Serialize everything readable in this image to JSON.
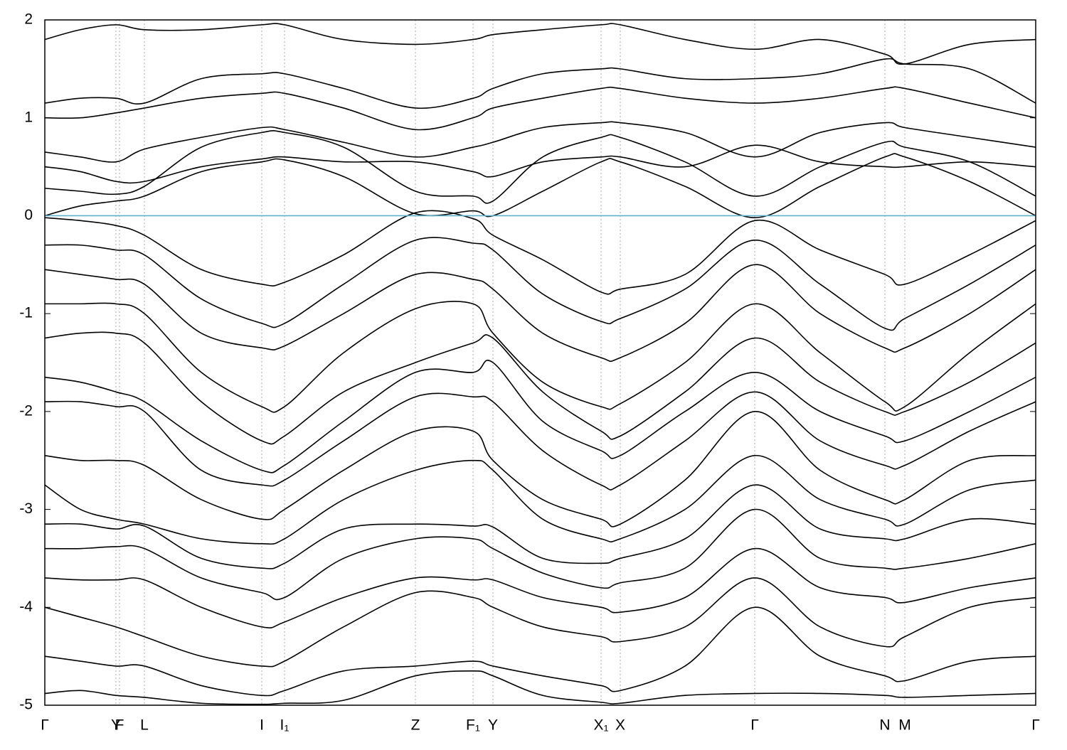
{
  "chart_data": {
    "type": "line",
    "xlim": [
      0,
      1393
    ],
    "ylim": [
      -5,
      2
    ],
    "yticks": [
      -5,
      -4,
      -3,
      -2,
      -1,
      0,
      1,
      2
    ],
    "xticks": [
      {
        "value": 0,
        "label": "Γ"
      },
      {
        "value": 100,
        "label": "Y"
      },
      {
        "value": 105,
        "label": "F"
      },
      {
        "value": 140,
        "label": "L"
      },
      {
        "value": 305,
        "label": "I"
      },
      {
        "value": 337,
        "label": "I₁"
      },
      {
        "value": 521,
        "label": "Z"
      },
      {
        "value": 602,
        "label": "F₁"
      },
      {
        "value": 630,
        "label": "Y"
      },
      {
        "value": 782,
        "label": "X₁"
      },
      {
        "value": 809,
        "label": "X"
      },
      {
        "value": 998,
        "label": "Γ"
      },
      {
        "value": 1181,
        "label": "N"
      },
      {
        "value": 1209,
        "label": "M"
      },
      {
        "value": 1393,
        "label": "Γ"
      }
    ],
    "grid": true,
    "fermi_level": 0,
    "fermi_color": "#5fb3c9",
    "line_color": "#000000",
    "x": [
      0,
      50,
      100,
      140,
      220,
      305,
      337,
      420,
      521,
      602,
      630,
      700,
      782,
      809,
      900,
      998,
      1090,
      1181,
      1209,
      1300,
      1393
    ],
    "series": [
      {
        "values": [
          1.8,
          1.9,
          1.95,
          1.9,
          1.9,
          1.95,
          1.95,
          1.8,
          1.75,
          1.8,
          1.85,
          1.9,
          1.95,
          1.95,
          1.8,
          1.7,
          1.8,
          1.65,
          1.55,
          1.75,
          1.8
        ]
      },
      {
        "values": [
          1.15,
          1.2,
          1.2,
          1.15,
          1.4,
          1.45,
          1.45,
          1.3,
          1.1,
          1.2,
          1.3,
          1.45,
          1.5,
          1.5,
          1.4,
          1.4,
          1.45,
          1.6,
          1.55,
          1.5,
          1.15
        ]
      },
      {
        "values": [
          1.0,
          1.0,
          1.05,
          1.1,
          1.2,
          1.25,
          1.25,
          1.1,
          0.88,
          1.0,
          1.1,
          1.2,
          1.3,
          1.3,
          1.2,
          1.15,
          1.2,
          1.3,
          1.3,
          1.15,
          1.0
        ]
      },
      {
        "values": [
          0.65,
          0.6,
          0.55,
          0.68,
          0.8,
          0.9,
          0.88,
          0.75,
          0.6,
          0.7,
          0.75,
          0.9,
          0.95,
          0.95,
          0.85,
          0.6,
          0.85,
          0.95,
          0.9,
          0.8,
          0.7
        ]
      },
      {
        "values": [
          0.5,
          0.45,
          0.35,
          0.35,
          0.5,
          0.58,
          0.6,
          0.55,
          0.55,
          0.45,
          0.4,
          0.55,
          0.6,
          0.6,
          0.5,
          0.72,
          0.55,
          0.5,
          0.5,
          0.55,
          0.5
        ]
      },
      {
        "values": [
          0.28,
          0.25,
          0.22,
          0.3,
          0.7,
          0.85,
          0.85,
          0.7,
          0.25,
          0.2,
          0.15,
          0.6,
          0.8,
          0.8,
          0.55,
          0.2,
          0.5,
          0.75,
          0.7,
          0.55,
          0.2
        ]
      },
      {
        "values": [
          0.0,
          0.1,
          0.15,
          0.2,
          0.45,
          0.55,
          0.57,
          0.4,
          0.02,
          0.05,
          0.0,
          0.25,
          0.55,
          0.55,
          0.3,
          -0.02,
          0.3,
          0.6,
          0.6,
          0.35,
          0.0
        ]
      },
      {
        "values": [
          -0.02,
          -0.05,
          -0.1,
          -0.2,
          -0.55,
          -0.7,
          -0.68,
          -0.4,
          0.03,
          -0.03,
          -0.2,
          -0.45,
          -0.78,
          -0.75,
          -0.6,
          -0.05,
          -0.35,
          -0.6,
          -0.7,
          -0.4,
          -0.05
        ]
      },
      {
        "values": [
          -0.3,
          -0.3,
          -0.35,
          -0.4,
          -0.85,
          -1.1,
          -1.1,
          -0.7,
          -0.25,
          -0.28,
          -0.35,
          -0.8,
          -1.08,
          -1.05,
          -0.75,
          -0.25,
          -0.7,
          -1.15,
          -1.05,
          -0.7,
          -0.3
        ]
      },
      {
        "values": [
          -0.55,
          -0.6,
          -0.65,
          -0.7,
          -1.2,
          -1.35,
          -1.33,
          -1.0,
          -0.6,
          -0.65,
          -0.75,
          -1.2,
          -1.45,
          -1.45,
          -1.1,
          -0.5,
          -1.0,
          -1.35,
          -1.35,
          -1.0,
          -0.55
        ]
      },
      {
        "values": [
          -0.9,
          -0.9,
          -0.9,
          -1.0,
          -1.6,
          -1.95,
          -1.95,
          -1.4,
          -0.95,
          -0.9,
          -1.2,
          -1.7,
          -1.95,
          -1.92,
          -1.5,
          -0.9,
          -1.4,
          -1.9,
          -1.95,
          -1.4,
          -0.9
        ]
      },
      {
        "values": [
          -1.25,
          -1.2,
          -1.2,
          -1.3,
          -1.9,
          -2.3,
          -2.25,
          -1.8,
          -1.5,
          -1.3,
          -1.25,
          -1.8,
          -2.2,
          -2.25,
          -1.8,
          -1.25,
          -1.7,
          -2.0,
          -2.0,
          -1.7,
          -1.3
        ]
      },
      {
        "values": [
          -1.65,
          -1.7,
          -1.8,
          -1.9,
          -2.3,
          -2.6,
          -2.55,
          -2.1,
          -1.6,
          -1.6,
          -1.5,
          -2.1,
          -2.4,
          -2.45,
          -2.0,
          -1.6,
          -2.0,
          -2.25,
          -2.3,
          -2.0,
          -1.65
        ]
      },
      {
        "values": [
          -1.9,
          -1.9,
          -1.95,
          -2.0,
          -2.6,
          -2.75,
          -2.7,
          -2.3,
          -1.85,
          -1.85,
          -1.9,
          -2.4,
          -2.75,
          -2.75,
          -2.3,
          -1.8,
          -2.3,
          -2.55,
          -2.55,
          -2.2,
          -1.9
        ]
      },
      {
        "values": [
          -2.45,
          -2.5,
          -2.5,
          -2.55,
          -2.9,
          -3.1,
          -3.0,
          -2.6,
          -2.2,
          -2.2,
          -2.5,
          -2.9,
          -3.1,
          -3.15,
          -2.7,
          -2.0,
          -2.6,
          -2.9,
          -2.9,
          -2.5,
          -2.45
        ]
      },
      {
        "values": [
          -2.75,
          -3.0,
          -3.1,
          -3.15,
          -3.3,
          -3.35,
          -3.3,
          -2.9,
          -2.6,
          -2.5,
          -2.6,
          -3.1,
          -3.3,
          -3.3,
          -3.0,
          -2.45,
          -2.9,
          -3.1,
          -3.15,
          -2.8,
          -2.7
        ]
      },
      {
        "values": [
          -3.15,
          -3.15,
          -3.2,
          -3.17,
          -3.5,
          -3.6,
          -3.55,
          -3.2,
          -3.15,
          -3.17,
          -3.18,
          -3.5,
          -3.55,
          -3.5,
          -3.3,
          -2.75,
          -3.2,
          -3.3,
          -3.3,
          -3.1,
          -3.15
        ]
      },
      {
        "values": [
          -3.4,
          -3.4,
          -3.38,
          -3.4,
          -3.7,
          -3.85,
          -3.9,
          -3.5,
          -3.3,
          -3.3,
          -3.4,
          -3.65,
          -3.8,
          -3.75,
          -3.6,
          -3.0,
          -3.5,
          -3.6,
          -3.6,
          -3.5,
          -3.35
        ]
      },
      {
        "values": [
          -3.7,
          -3.72,
          -3.72,
          -3.72,
          -4.0,
          -4.2,
          -4.15,
          -3.9,
          -3.7,
          -3.72,
          -3.72,
          -3.9,
          -4.0,
          -4.05,
          -3.9,
          -3.4,
          -3.8,
          -3.9,
          -3.95,
          -3.8,
          -3.7
        ]
      },
      {
        "values": [
          -4.0,
          -4.1,
          -4.2,
          -4.3,
          -4.5,
          -4.6,
          -4.55,
          -4.2,
          -3.85,
          -3.9,
          -4.0,
          -4.2,
          -4.3,
          -4.35,
          -4.2,
          -3.7,
          -4.2,
          -4.4,
          -4.3,
          -4.0,
          -3.9
        ]
      },
      {
        "values": [
          -4.5,
          -4.55,
          -4.6,
          -4.6,
          -4.8,
          -4.9,
          -4.85,
          -4.65,
          -4.6,
          -4.55,
          -4.6,
          -4.7,
          -4.8,
          -4.85,
          -4.6,
          -4.0,
          -4.5,
          -4.7,
          -4.75,
          -4.55,
          -4.5
        ]
      },
      {
        "values": [
          -4.88,
          -4.85,
          -4.9,
          -4.92,
          -4.98,
          -4.99,
          -4.98,
          -4.95,
          -4.7,
          -4.65,
          -4.7,
          -4.9,
          -4.97,
          -4.98,
          -4.9,
          -4.88,
          -4.88,
          -4.9,
          -4.92,
          -4.9,
          -4.88
        ]
      }
    ]
  }
}
